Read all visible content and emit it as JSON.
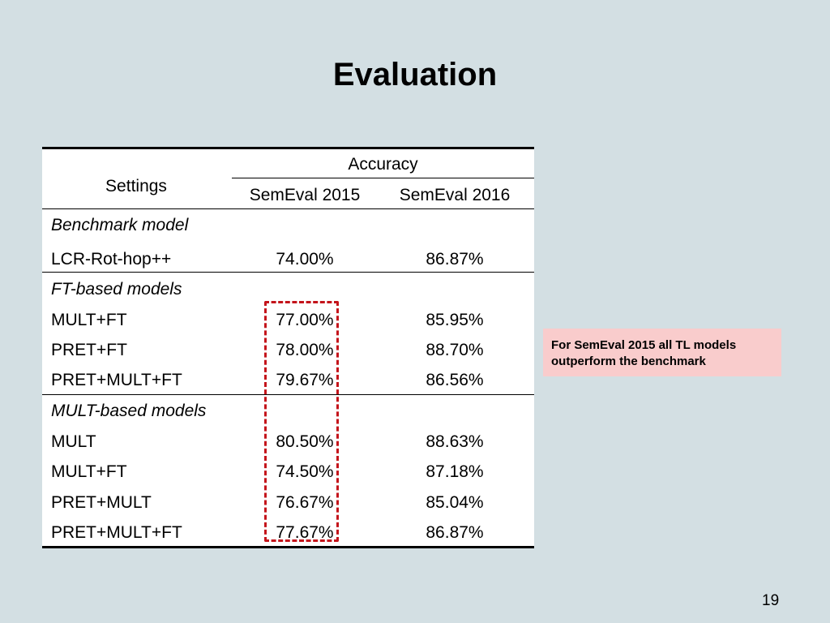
{
  "title": "Evaluation",
  "table": {
    "header": {
      "settings": "Settings",
      "accuracy": "Accuracy",
      "col1": "SemEval 2015",
      "col2": "SemEval 2016"
    },
    "groups": [
      {
        "label": "Benchmark model",
        "rows": [
          {
            "name": "LCR-Rot-hop++",
            "v2015": "74.00%",
            "v2016": "86.87%"
          }
        ]
      },
      {
        "label": "FT-based models",
        "rows": [
          {
            "name": "MULT+FT",
            "v2015": "77.00%",
            "v2016": "85.95%"
          },
          {
            "name": "PRET+FT",
            "v2015": "78.00%",
            "v2016": "88.70%"
          },
          {
            "name": "PRET+MULT+FT",
            "v2015": "79.67%",
            "v2016": "86.56%"
          }
        ]
      },
      {
        "label": "MULT-based models",
        "rows": [
          {
            "name": "MULT",
            "v2015": "80.50%",
            "v2016": "88.63%"
          },
          {
            "name": "MULT+FT",
            "v2015": "74.50%",
            "v2016": "87.18%"
          },
          {
            "name": "PRET+MULT",
            "v2015": "76.67%",
            "v2016": "85.04%"
          },
          {
            "name": "PRET+MULT+FT",
            "v2015": "77.67%",
            "v2016": "86.87%"
          }
        ]
      }
    ]
  },
  "note": "For SemEval 2015 all TL models outperform the benchmark",
  "colors": {
    "highlight": "#c4141b",
    "note_bg": "#f9cccc",
    "background": "#d3dfe3"
  },
  "page_number": "19"
}
